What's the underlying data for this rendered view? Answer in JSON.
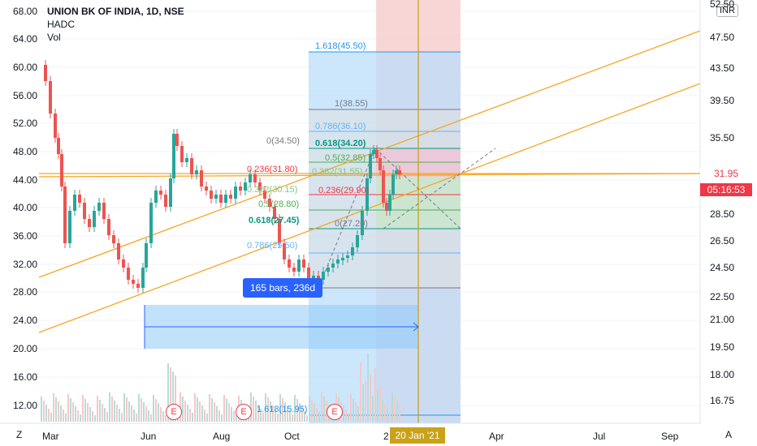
{
  "header": {
    "symbol": "UNION BK OF INDIA, 1D, NSE",
    "indicator_1": "HADC",
    "indicator_2": "Vol",
    "currency": "INR"
  },
  "left_axis": [
    "68.00",
    "64.00",
    "60.00",
    "56.00",
    "52.00",
    "48.00",
    "44.00",
    "40.00",
    "36.00",
    "32.00",
    "28.00",
    "24.00",
    "20.00",
    "16.00",
    "12.00"
  ],
  "right_axis": [
    "52.50",
    "47.50",
    "43.50",
    "39.50",
    "35.50",
    "31.95",
    "28.50",
    "26.50",
    "24.50",
    "22.50",
    "21.00",
    "19.50",
    "18.00",
    "16.75"
  ],
  "x_axis": [
    "Mar",
    "Jun",
    "Aug",
    "Oct",
    "2",
    "Apr",
    "Jul",
    "Sep"
  ],
  "price_tag": {
    "price": "31.95",
    "countdown": "05:16:53"
  },
  "date_tag": "20 Jan '21",
  "range_tag": "165 bars, 236d",
  "earnings_label": "E",
  "fib_right": [
    "1.618(45.50)",
    "1(38.55)",
    "0.786(36.10)",
    "0.618(34.20)",
    "0.5(32.85)",
    "0.382(31.55)",
    "0.236(29.90)",
    "0(27.20)"
  ],
  "fib_left": [
    "0(34.50)",
    "0.236(31.80)",
    "0.382(30.15)",
    "0.5(28.80)",
    "0.618(27.45)",
    "0.786(25.50)",
    "1.618(15.95)"
  ],
  "corner": {
    "left": "Z",
    "right": "A"
  },
  "colors": {
    "up": "#26a69a",
    "down": "#ef5350",
    "trend": "#f5a623",
    "fib_blue": "#2196f3",
    "fib_red": "#f23645",
    "accent": "#2962ff"
  }
}
